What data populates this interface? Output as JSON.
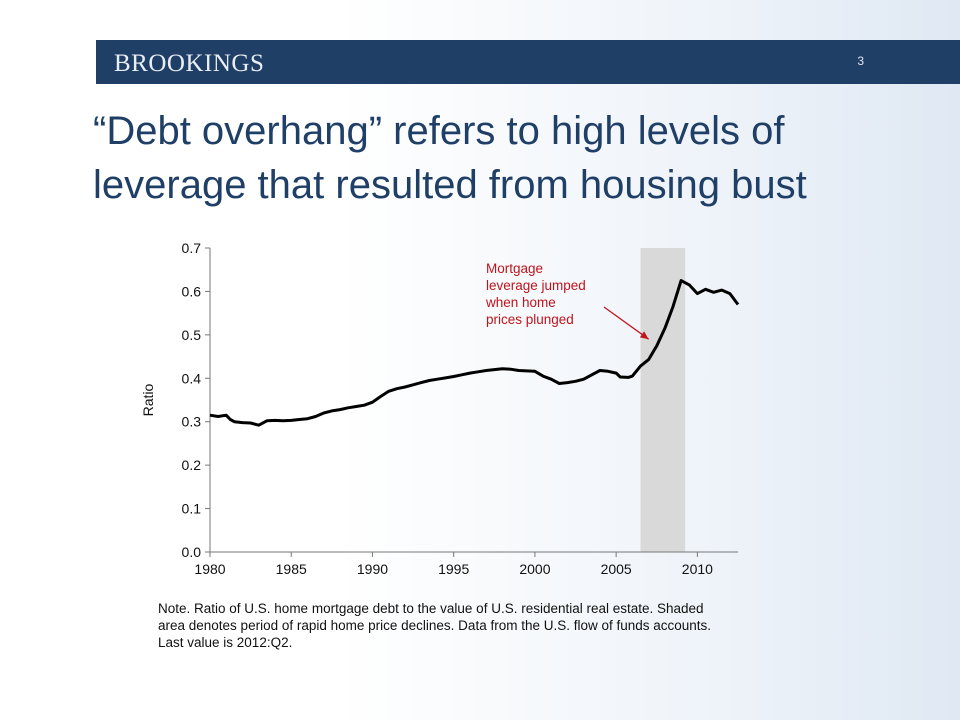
{
  "header": {
    "brand": "BROOKINGS",
    "page_number": "3",
    "accent_color": "#1f3f67"
  },
  "slide": {
    "title": "“Debt overhang” refers to high levels of leverage that resulted from housing bust",
    "note": "Note. Ratio of U.S. home mortgage debt to the value of U.S. residential real estate. Shaded area denotes period of rapid home price declines. Data from the U.S. flow of funds accounts. Last value is 2012:Q2."
  },
  "chart_data": {
    "type": "line",
    "title": "",
    "xlabel": "",
    "ylabel": "Ratio",
    "xlim": [
      1980,
      2012.5
    ],
    "ylim": [
      0,
      0.7
    ],
    "x_ticks": [
      1980,
      1985,
      1990,
      1995,
      2000,
      2005,
      2010
    ],
    "y_ticks": [
      "0.0",
      "0.1",
      "0.2",
      "0.3",
      "0.4",
      "0.5",
      "0.6",
      "0.7"
    ],
    "grid": false,
    "line_color": "#000000",
    "shaded_region": {
      "x_start": 2006.5,
      "x_end": 2009.25,
      "color": "#d9d9d9"
    },
    "annotation": {
      "text_lines": [
        "Mortgage",
        "leverage jumped",
        "when home",
        "prices plunged"
      ],
      "color": "#c0141c",
      "arrow_to": {
        "x": 2007.0,
        "y": 0.49
      }
    },
    "series": [
      {
        "values": [
          [
            1980.0,
            0.315
          ],
          [
            1980.5,
            0.312
          ],
          [
            1981.0,
            0.315
          ],
          [
            1981.25,
            0.305
          ],
          [
            1981.5,
            0.3
          ],
          [
            1982.0,
            0.298
          ],
          [
            1982.5,
            0.297
          ],
          [
            1983.0,
            0.292
          ],
          [
            1983.5,
            0.302
          ],
          [
            1984.0,
            0.303
          ],
          [
            1984.5,
            0.302
          ],
          [
            1985.0,
            0.303
          ],
          [
            1985.5,
            0.305
          ],
          [
            1986.0,
            0.307
          ],
          [
            1986.5,
            0.312
          ],
          [
            1987.0,
            0.32
          ],
          [
            1987.5,
            0.325
          ],
          [
            1988.0,
            0.328
          ],
          [
            1988.5,
            0.332
          ],
          [
            1989.0,
            0.335
          ],
          [
            1989.5,
            0.338
          ],
          [
            1990.0,
            0.345
          ],
          [
            1990.5,
            0.358
          ],
          [
            1991.0,
            0.37
          ],
          [
            1991.5,
            0.376
          ],
          [
            1992.0,
            0.38
          ],
          [
            1992.5,
            0.385
          ],
          [
            1993.0,
            0.39
          ],
          [
            1993.5,
            0.395
          ],
          [
            1994.0,
            0.398
          ],
          [
            1994.5,
            0.401
          ],
          [
            1995.0,
            0.404
          ],
          [
            1995.5,
            0.408
          ],
          [
            1996.0,
            0.412
          ],
          [
            1996.5,
            0.415
          ],
          [
            1997.0,
            0.418
          ],
          [
            1997.5,
            0.42
          ],
          [
            1998.0,
            0.422
          ],
          [
            1998.5,
            0.421
          ],
          [
            1999.0,
            0.418
          ],
          [
            1999.5,
            0.417
          ],
          [
            2000.0,
            0.416
          ],
          [
            2000.5,
            0.405
          ],
          [
            2001.0,
            0.398
          ],
          [
            2001.5,
            0.388
          ],
          [
            2002.0,
            0.39
          ],
          [
            2002.5,
            0.393
          ],
          [
            2003.0,
            0.398
          ],
          [
            2003.5,
            0.408
          ],
          [
            2004.0,
            0.418
          ],
          [
            2004.5,
            0.416
          ],
          [
            2005.0,
            0.412
          ],
          [
            2005.25,
            0.403
          ],
          [
            2005.75,
            0.402
          ],
          [
            2006.0,
            0.405
          ],
          [
            2006.5,
            0.428
          ],
          [
            2007.0,
            0.443
          ],
          [
            2007.5,
            0.475
          ],
          [
            2008.0,
            0.515
          ],
          [
            2008.5,
            0.565
          ],
          [
            2009.0,
            0.625
          ],
          [
            2009.5,
            0.615
          ],
          [
            2010.0,
            0.595
          ],
          [
            2010.5,
            0.605
          ],
          [
            2011.0,
            0.598
          ],
          [
            2011.5,
            0.603
          ],
          [
            2012.0,
            0.595
          ],
          [
            2012.5,
            0.57
          ]
        ]
      }
    ]
  }
}
